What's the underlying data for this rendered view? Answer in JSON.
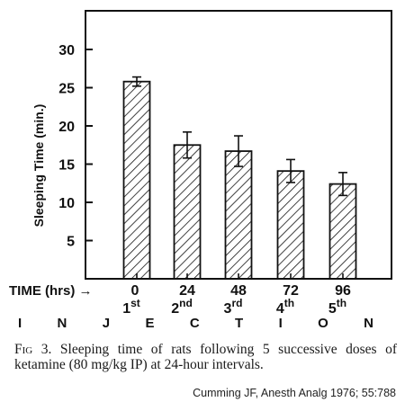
{
  "chart_data": {
    "type": "bar",
    "title": "",
    "ylabel": "Sleeping Time (min.)",
    "xlabel": "I N J E C T I O N",
    "xaxis_prefix": "TIME (hrs) →",
    "ylim": [
      0,
      35
    ],
    "yticks": [
      5,
      10,
      15,
      20,
      25,
      30
    ],
    "categories": [
      "0",
      "24",
      "48",
      "72",
      "96"
    ],
    "injection_labels": [
      {
        "num": "1",
        "sup": "st"
      },
      {
        "num": "2",
        "sup": "nd"
      },
      {
        "num": "3",
        "sup": "rd"
      },
      {
        "num": "4",
        "sup": "th"
      },
      {
        "num": "5",
        "sup": "th"
      }
    ],
    "values": [
      25.8,
      17.5,
      16.7,
      14.1,
      12.4
    ],
    "error": [
      0.6,
      1.7,
      2.0,
      1.5,
      1.5
    ],
    "bar_fill": "hatched",
    "grid": false
  },
  "caption": {
    "fig_label": "Fig 3.",
    "text": "Sleeping time of rats following 5 successive doses of ketamine (80 mg/kg IP) at 24-hour intervals."
  },
  "citation": "Cumming JF, Anesth Analg 1976; 55:788"
}
